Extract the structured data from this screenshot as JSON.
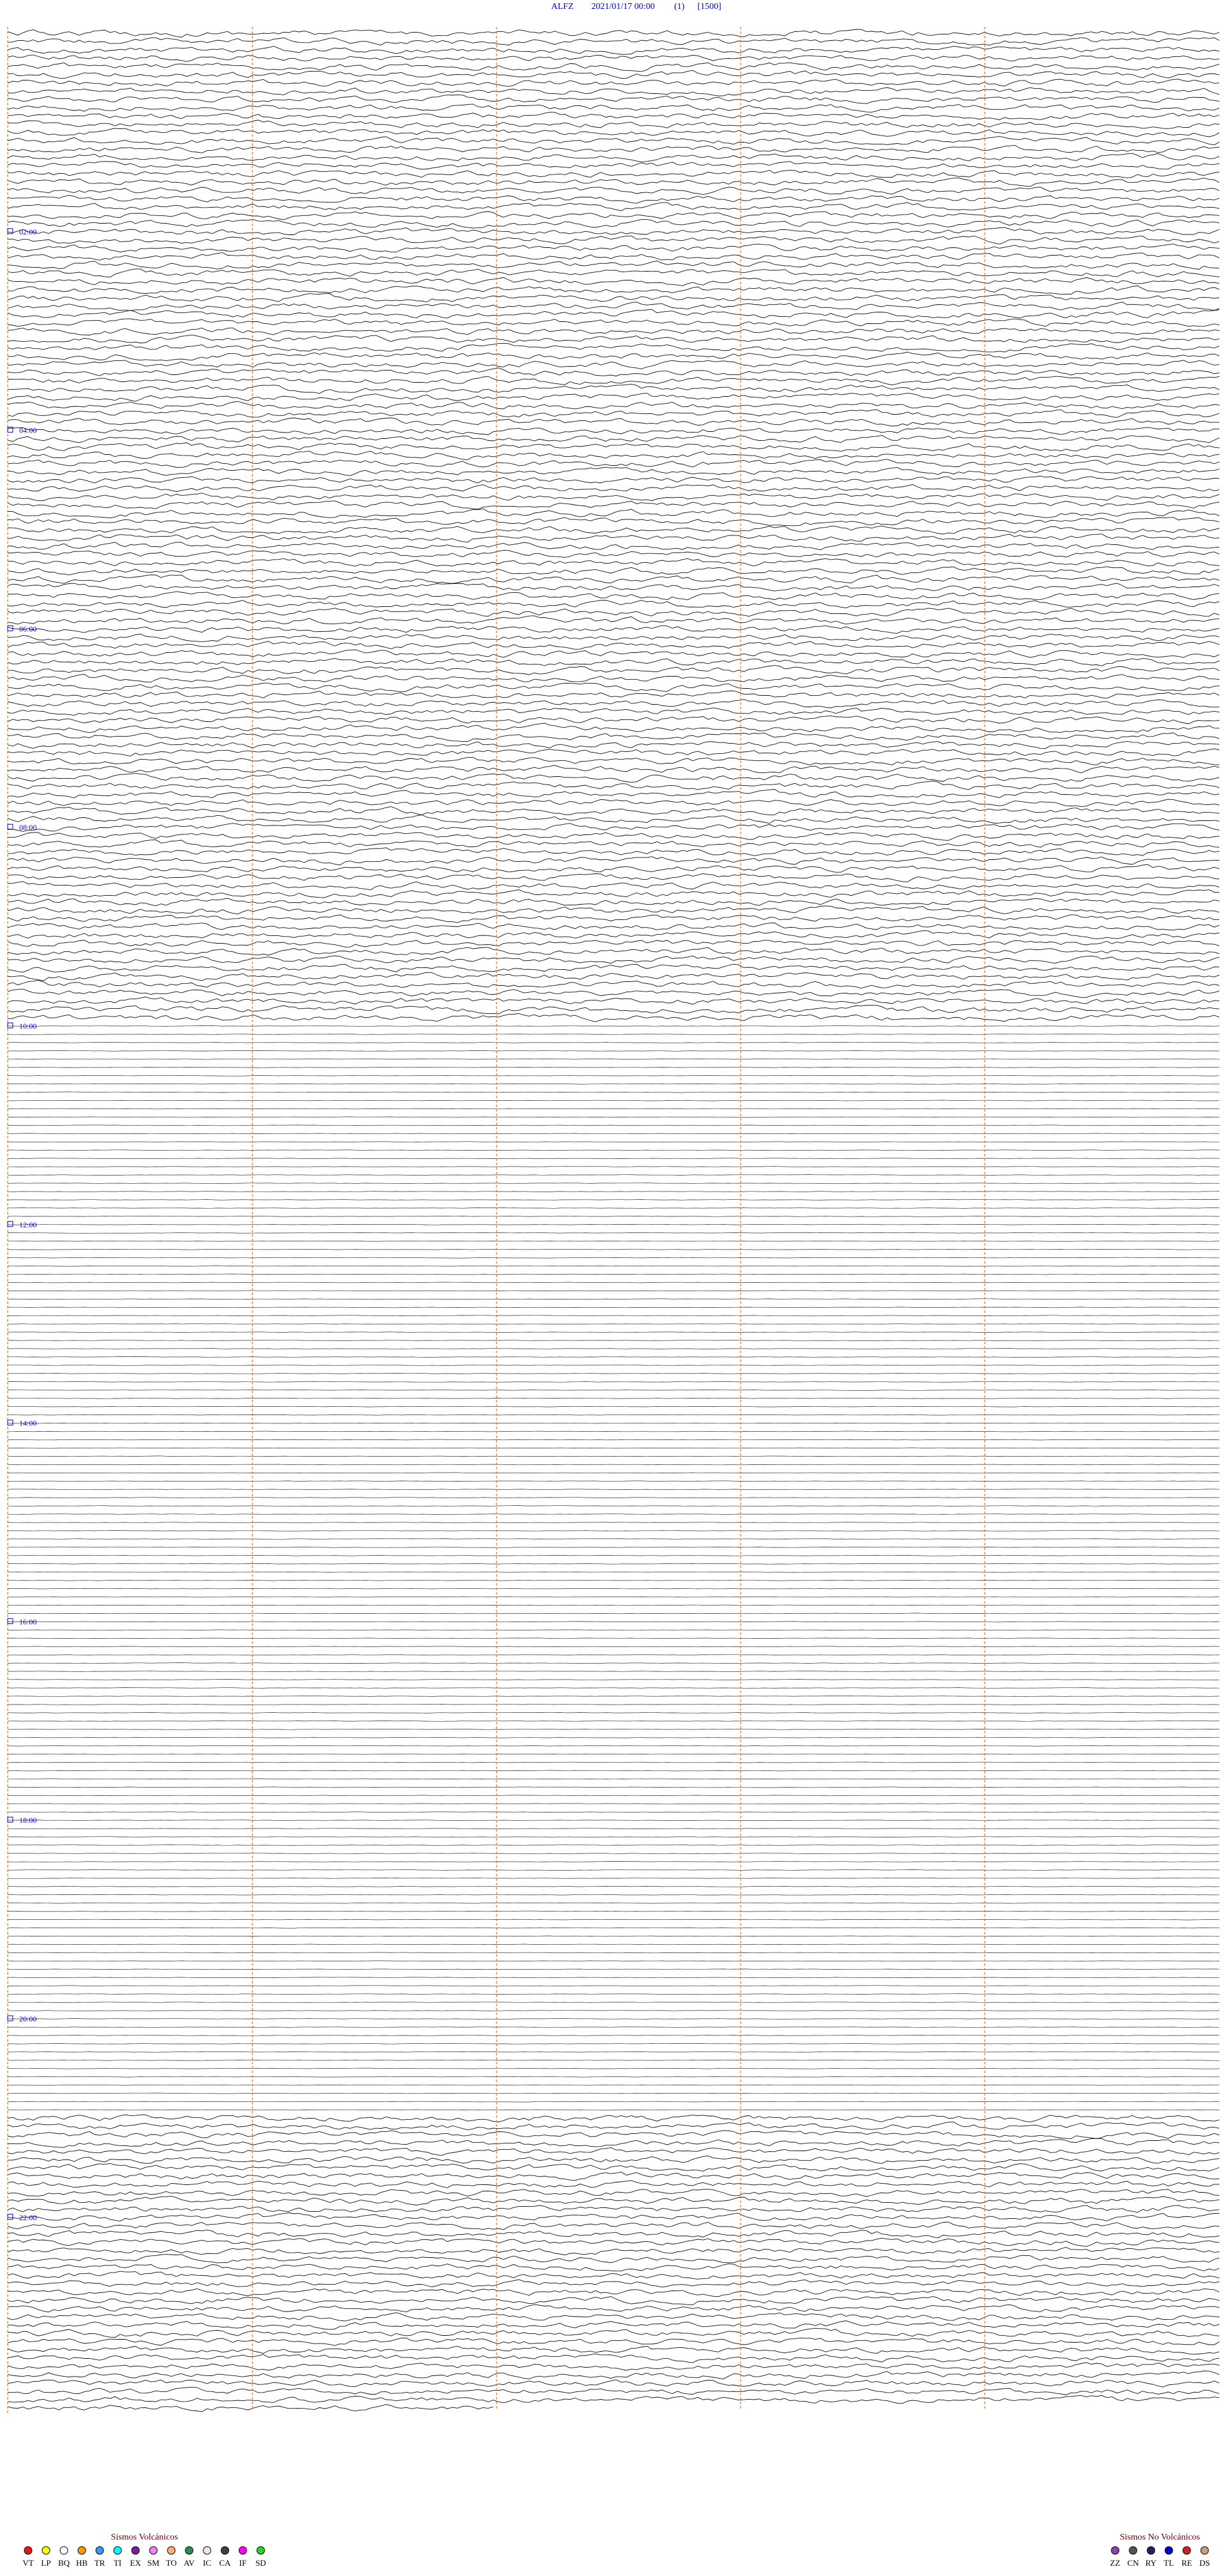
{
  "header": {
    "station": "ALFZ",
    "datetime": "2021/01/17 00:00",
    "channel": "(1)",
    "scale": "[1500]"
  },
  "hour_labels": [
    "02:00",
    "04:00",
    "06:00",
    "08:00",
    "10:00",
    "12:00",
    "14:00",
    "16:00",
    "18:00",
    "20:00",
    "22:00"
  ],
  "legend": {
    "volcanic": {
      "title": "Sismos Volcánicos",
      "items": [
        {
          "code": "VT",
          "color": "#e01818"
        },
        {
          "code": "LP",
          "color": "#ffff00"
        },
        {
          "code": "BQ",
          "color": "#ffffff"
        },
        {
          "code": "HB",
          "color": "#ff9900"
        },
        {
          "code": "TR",
          "color": "#3399ff"
        },
        {
          "code": "TI",
          "color": "#00ffff"
        },
        {
          "code": "EX",
          "color": "#7a1fa2"
        },
        {
          "code": "SM",
          "color": "#ee82ee"
        },
        {
          "code": "TO",
          "color": "#ffb080"
        },
        {
          "code": "AV",
          "color": "#2e8b57"
        },
        {
          "code": "IC",
          "color": "#e8e8e8"
        },
        {
          "code": "CA",
          "color": "#404040"
        },
        {
          "code": "IF",
          "color": "#ff00ff"
        },
        {
          "code": "SD",
          "color": "#33cc33"
        }
      ]
    },
    "non_volcanic": {
      "title": "Sismos No Volcánicos",
      "items": [
        {
          "code": "ZZ",
          "color": "#8e44ad"
        },
        {
          "code": "CN",
          "color": "#555555"
        },
        {
          "code": "RY",
          "color": "#222266"
        },
        {
          "code": "TL",
          "color": "#0000cc"
        },
        {
          "code": "RE",
          "color": "#cc2222"
        },
        {
          "code": "DS",
          "color": "#c8a080"
        }
      ]
    }
  }
}
